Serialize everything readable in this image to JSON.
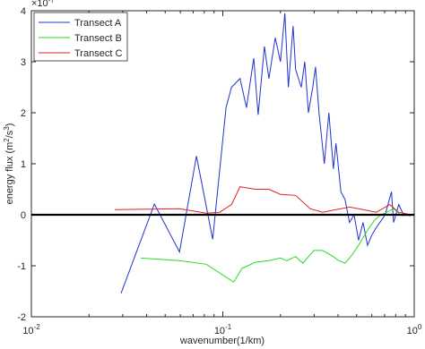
{
  "chart_data": {
    "type": "line",
    "xlabel": "wavenumber(1/km)",
    "ylabel_parts": [
      "energy flux (m",
      "2",
      "/s",
      "3",
      ")"
    ],
    "y_multiplier": "×10",
    "y_multiplier_exp": "-7",
    "xscale": "log",
    "xlim": [
      0.01,
      1
    ],
    "ylim": [
      -2,
      4
    ],
    "xticks": [
      {
        "value": 0.01,
        "label": "10",
        "exp": "-2"
      },
      {
        "value": 0.1,
        "label": "10",
        "exp": "-1"
      },
      {
        "value": 1,
        "label": "10",
        "exp": "0"
      }
    ],
    "yticks": [
      -2,
      -1,
      0,
      1,
      2,
      3,
      4
    ],
    "hline": 0,
    "legend": "top-left",
    "series": [
      {
        "name": "Transect A",
        "color": "#2233cc",
        "x": [
          0.0294,
          0.0439,
          0.0594,
          0.0728,
          0.0885,
          0.104,
          0.111,
          0.123,
          0.133,
          0.145,
          0.153,
          0.165,
          0.174,
          0.188,
          0.2,
          0.211,
          0.22,
          0.233,
          0.24,
          0.257,
          0.268,
          0.28,
          0.295,
          0.305,
          0.318,
          0.339,
          0.358,
          0.378,
          0.39,
          0.414,
          0.435,
          0.459,
          0.485,
          0.512,
          0.54,
          0.57,
          0.6,
          0.634,
          0.705,
          0.76,
          0.78,
          0.83,
          0.88,
          0.96
        ],
        "values": [
          -1.54,
          0.21,
          -0.73,
          1.15,
          -0.48,
          2.1,
          2.5,
          2.67,
          2.1,
          3.07,
          1.96,
          3.3,
          2.67,
          3.47,
          3.0,
          3.95,
          2.5,
          3.7,
          2.85,
          2.5,
          3.0,
          2.0,
          2.5,
          2.9,
          2.0,
          1.0,
          2.0,
          0.9,
          1.4,
          0.45,
          0.3,
          -0.15,
          0.0,
          -0.5,
          -0.15,
          -0.6,
          -0.4,
          -0.25,
          0.0,
          0.45,
          -0.15,
          0.2,
          0.0,
          -0.02
        ]
      },
      {
        "name": "Transect B",
        "color": "#22dd22",
        "x": [
          0.0373,
          0.0594,
          0.082,
          0.114,
          0.126,
          0.148,
          0.174,
          0.2,
          0.216,
          0.24,
          0.262,
          0.299,
          0.332,
          0.37,
          0.404,
          0.435,
          0.47,
          0.512,
          0.57,
          0.622,
          0.67,
          0.72,
          0.78,
          0.86,
          0.96
        ],
        "values": [
          -0.85,
          -0.9,
          -0.97,
          -1.32,
          -1.05,
          -0.93,
          -0.9,
          -0.85,
          -0.9,
          -0.82,
          -0.95,
          -0.7,
          -0.7,
          -0.8,
          -0.9,
          -0.95,
          -0.8,
          -0.6,
          -0.3,
          -0.1,
          0.0,
          0.05,
          0.12,
          -0.02,
          0.0
        ]
      },
      {
        "name": "Transect C",
        "color": "#dd2222",
        "x": [
          0.0273,
          0.0594,
          0.082,
          0.0962,
          0.111,
          0.123,
          0.148,
          0.174,
          0.2,
          0.24,
          0.286,
          0.332,
          0.39,
          0.459,
          0.54,
          0.634,
          0.745,
          0.83,
          0.96
        ],
        "values": [
          0.1,
          0.12,
          0.03,
          0.05,
          0.2,
          0.55,
          0.5,
          0.5,
          0.4,
          0.38,
          0.12,
          0.05,
          0.1,
          0.15,
          0.1,
          0.05,
          0.2,
          0.05,
          0.0
        ]
      }
    ]
  }
}
